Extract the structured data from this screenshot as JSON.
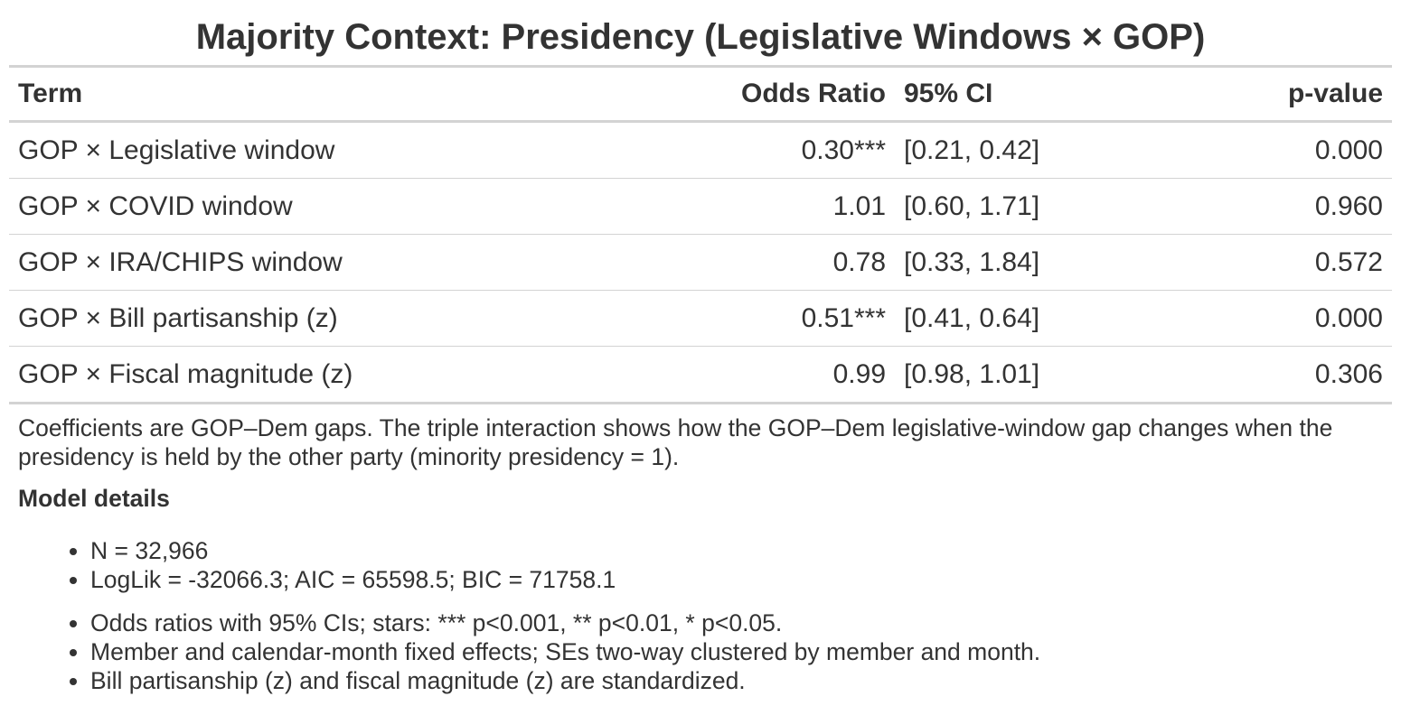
{
  "title": "Majority Context: Presidency (Legislative Windows × GOP)",
  "columns": {
    "term": "Term",
    "odds_ratio": "Odds Ratio",
    "ci": "95% CI",
    "p_value": "p-value"
  },
  "rows": [
    {
      "term": "GOP × Legislative window",
      "odds_ratio": "0.30***",
      "ci": "[0.21, 0.42]",
      "p_value": "0.000"
    },
    {
      "term": "GOP × COVID window",
      "odds_ratio": "1.01",
      "ci": "[0.60, 1.71]",
      "p_value": "0.960"
    },
    {
      "term": "GOP × IRA/CHIPS window",
      "odds_ratio": "0.78",
      "ci": "[0.33, 1.84]",
      "p_value": "0.572"
    },
    {
      "term": "GOP × Bill partisanship (z)",
      "odds_ratio": "0.51***",
      "ci": "[0.41, 0.64]",
      "p_value": "0.000"
    },
    {
      "term": "GOP × Fiscal magnitude (z)",
      "odds_ratio": "0.99",
      "ci": "[0.98, 1.01]",
      "p_value": "0.306"
    }
  ],
  "footnote": "Coefficients are GOP–Dem gaps. The triple interaction shows how the GOP–Dem legislative-window gap changes when the presidency is held by the other party (minority presidency = 1).",
  "model_details": {
    "heading": "Model details",
    "stats": [
      "N = 32,966",
      "LogLik = -32066.3; AIC = 65598.5; BIC = 71758.1"
    ],
    "notes": [
      "Odds ratios with 95% CIs; stars: *** p<0.001, ** p<0.01, * p<0.05.",
      "Member and calendar-month fixed effects; SEs two-way clustered by member and month.",
      "Bill partisanship (z) and fiscal magnitude (z) are standardized."
    ]
  }
}
